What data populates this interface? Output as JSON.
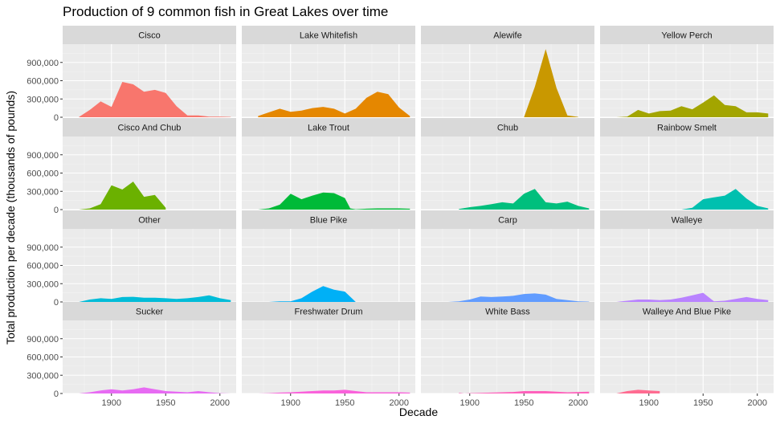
{
  "chart_data": {
    "type": "area",
    "title": "Production of 9 common fish in Great Lakes over time",
    "xlabel": "Decade",
    "ylabel": "Total production per decade (thousands of pounds)",
    "xlim": [
      1855,
      2015
    ],
    "ylim": [
      0,
      1200000
    ],
    "x_ticks": [
      1900,
      1950,
      2000
    ],
    "x_tick_labels": [
      "1900",
      "1950",
      "2000"
    ],
    "y_ticks": [
      0,
      300000,
      600000,
      900000
    ],
    "y_tick_labels": [
      "0",
      "300,000",
      "600,000",
      "900,000"
    ],
    "grid": true,
    "legend": "none",
    "facets": [
      {
        "name": "Cisco",
        "color": "#F8766D",
        "x": [
          1870,
          1880,
          1890,
          1900,
          1910,
          1920,
          1930,
          1940,
          1950,
          1960,
          1970,
          1980,
          1990,
          2000,
          2010
        ],
        "values": [
          5000,
          120000,
          260000,
          170000,
          580000,
          540000,
          420000,
          450000,
          400000,
          180000,
          30000,
          30000,
          10000,
          10000,
          5000
        ]
      },
      {
        "name": "Lake Whitefish",
        "color": "#E58700",
        "x": [
          1870,
          1880,
          1890,
          1900,
          1910,
          1920,
          1930,
          1940,
          1950,
          1960,
          1970,
          1980,
          1990,
          2000,
          2010
        ],
        "values": [
          20000,
          80000,
          140000,
          90000,
          110000,
          150000,
          170000,
          140000,
          60000,
          140000,
          320000,
          420000,
          380000,
          160000,
          20000
        ]
      },
      {
        "name": "Alewife",
        "color": "#C99800",
        "x": [
          1950,
          1960,
          1970,
          1980,
          1990,
          2000
        ],
        "values": [
          0,
          500000,
          1120000,
          480000,
          30000,
          5000
        ]
      },
      {
        "name": "Yellow Perch",
        "color": "#A3A500",
        "x": [
          1870,
          1880,
          1890,
          1900,
          1910,
          1920,
          1930,
          1940,
          1950,
          1960,
          1970,
          1980,
          1990,
          2000,
          2010
        ],
        "values": [
          0,
          10000,
          120000,
          60000,
          100000,
          110000,
          180000,
          130000,
          240000,
          360000,
          200000,
          180000,
          80000,
          80000,
          60000
        ]
      },
      {
        "name": "Cisco And Chub",
        "color": "#6BB100",
        "x": [
          1870,
          1880,
          1890,
          1900,
          1910,
          1920,
          1930,
          1940,
          1950
        ],
        "values": [
          0,
          20000,
          90000,
          400000,
          330000,
          460000,
          210000,
          240000,
          30000
        ]
      },
      {
        "name": "Lake Trout",
        "color": "#00BA38",
        "x": [
          1870,
          1880,
          1890,
          1900,
          1910,
          1920,
          1930,
          1940,
          1950,
          1955,
          1960,
          1970,
          1980,
          1990,
          2000,
          2010
        ],
        "values": [
          0,
          20000,
          80000,
          260000,
          170000,
          230000,
          280000,
          270000,
          190000,
          20000,
          5000,
          15000,
          20000,
          20000,
          20000,
          15000
        ]
      },
      {
        "name": "Chub",
        "color": "#00BF7D",
        "x": [
          1890,
          1900,
          1910,
          1920,
          1930,
          1940,
          1950,
          1960,
          1970,
          1980,
          1990,
          2000,
          2010
        ],
        "values": [
          10000,
          40000,
          60000,
          90000,
          120000,
          100000,
          260000,
          340000,
          120000,
          100000,
          130000,
          60000,
          20000
        ]
      },
      {
        "name": "Rainbow Smelt",
        "color": "#00C0AF",
        "x": [
          1930,
          1940,
          1950,
          1960,
          1970,
          1980,
          1990,
          2000,
          2010
        ],
        "values": [
          0,
          30000,
          170000,
          200000,
          230000,
          340000,
          180000,
          60000,
          20000
        ]
      },
      {
        "name": "Other",
        "color": "#00BCD8",
        "x": [
          1870,
          1880,
          1890,
          1900,
          1910,
          1920,
          1930,
          1940,
          1950,
          1960,
          1970,
          1980,
          1990,
          2000,
          2010
        ],
        "values": [
          0,
          40000,
          60000,
          50000,
          80000,
          85000,
          70000,
          70000,
          60000,
          50000,
          60000,
          80000,
          110000,
          60000,
          30000
        ]
      },
      {
        "name": "Blue Pike",
        "color": "#00B0F6",
        "x": [
          1880,
          1890,
          1900,
          1910,
          1920,
          1930,
          1940,
          1950,
          1960
        ],
        "values": [
          0,
          10000,
          10000,
          60000,
          170000,
          260000,
          200000,
          170000,
          0
        ]
      },
      {
        "name": "Carp",
        "color": "#619CFF",
        "x": [
          1880,
          1890,
          1900,
          1910,
          1920,
          1930,
          1940,
          1950,
          1960,
          1970,
          1980,
          1990,
          2000,
          2010
        ],
        "values": [
          0,
          10000,
          40000,
          90000,
          80000,
          90000,
          100000,
          130000,
          140000,
          120000,
          50000,
          30000,
          10000,
          5000
        ]
      },
      {
        "name": "Walleye",
        "color": "#B983FF",
        "x": [
          1870,
          1880,
          1890,
          1900,
          1910,
          1920,
          1930,
          1940,
          1950,
          1960,
          1970,
          1980,
          1990,
          2000,
          2010
        ],
        "values": [
          0,
          20000,
          40000,
          40000,
          30000,
          40000,
          70000,
          110000,
          150000,
          10000,
          20000,
          50000,
          80000,
          50000,
          30000
        ]
      },
      {
        "name": "Sucker",
        "color": "#E76BF3",
        "x": [
          1870,
          1880,
          1890,
          1900,
          1910,
          1920,
          1930,
          1940,
          1950,
          1960,
          1970,
          1980,
          1990,
          2000,
          2010
        ],
        "values": [
          0,
          20000,
          50000,
          70000,
          50000,
          70000,
          100000,
          70000,
          40000,
          30000,
          20000,
          40000,
          20000,
          5000,
          0
        ]
      },
      {
        "name": "Freshwater Drum",
        "color": "#FA62DB",
        "x": [
          1870,
          1880,
          1890,
          1900,
          1910,
          1920,
          1930,
          1940,
          1950,
          1960,
          1970,
          1980,
          1990,
          2000,
          2010
        ],
        "values": [
          0,
          5000,
          15000,
          20000,
          30000,
          40000,
          50000,
          50000,
          60000,
          40000,
          20000,
          20000,
          20000,
          20000,
          15000
        ]
      },
      {
        "name": "White Bass",
        "color": "#FF62BC",
        "x": [
          1890,
          1895,
          1900,
          1910,
          1920,
          1930,
          1940,
          1950,
          1960,
          1970,
          1980,
          1990,
          2000,
          2010
        ],
        "values": [
          10000,
          0,
          5000,
          10000,
          15000,
          20000,
          25000,
          40000,
          40000,
          40000,
          30000,
          20000,
          25000,
          30000
        ]
      },
      {
        "name": "Walleye And Blue Pike",
        "color": "#FF6C91",
        "x": [
          1870,
          1880,
          1890,
          1900,
          1910
        ],
        "values": [
          0,
          40000,
          60000,
          50000,
          40000
        ]
      }
    ]
  }
}
